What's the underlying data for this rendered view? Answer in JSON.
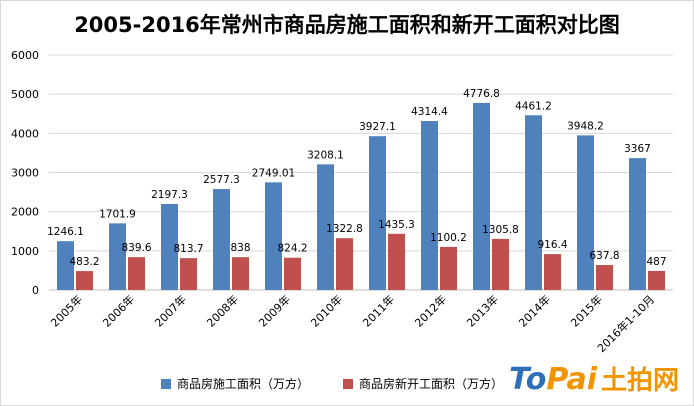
{
  "chart_data": {
    "type": "bar",
    "title": "2005-2016年常州市商品房施工面积和新开工面积对比图",
    "categories": [
      "2005年",
      "2006年",
      "2007年",
      "2008年",
      "2009年",
      "2010年",
      "2011年",
      "2012年",
      "2013年",
      "2014年",
      "2015年",
      "2016年1-10月"
    ],
    "series": [
      {
        "name": "商品房施工面积（万方）",
        "color": "#4f81bd",
        "values": [
          1246.1,
          1701.9,
          2197.3,
          2577.3,
          2749.01,
          3208.1,
          3927.1,
          4314.4,
          4776.8,
          4461.2,
          3948.2,
          3367
        ],
        "labels": [
          "1246.1",
          "1701.9",
          "2197.3",
          "2577.3",
          "2749.01",
          "3208.1",
          "3927.1",
          "4314.4",
          "4776.8",
          "4461.2",
          "3948.2",
          "3367"
        ]
      },
      {
        "name": "商品房新开工面积（万方）",
        "color": "#c0504d",
        "values": [
          483.2,
          839.6,
          813.7,
          838,
          824.2,
          1322.8,
          1435.3,
          1100.2,
          1305.8,
          916.4,
          637.8,
          487
        ],
        "labels": [
          "483.2",
          "839.6",
          "813.7",
          "838",
          "824.2",
          "1322.8",
          "1435.3",
          "1100.2",
          "1305.8",
          "916.4",
          "637.8",
          "487"
        ]
      }
    ],
    "y_ticks": [
      "0",
      "1000",
      "2000",
      "3000",
      "4000",
      "5000",
      "6000"
    ],
    "ylim": [
      0,
      6000
    ],
    "xlabel": "",
    "ylabel": "",
    "grid": true,
    "legend_position": "bottom"
  },
  "logo": {
    "part1": "To",
    "part2": "Pai",
    "part3": "土拍网"
  }
}
